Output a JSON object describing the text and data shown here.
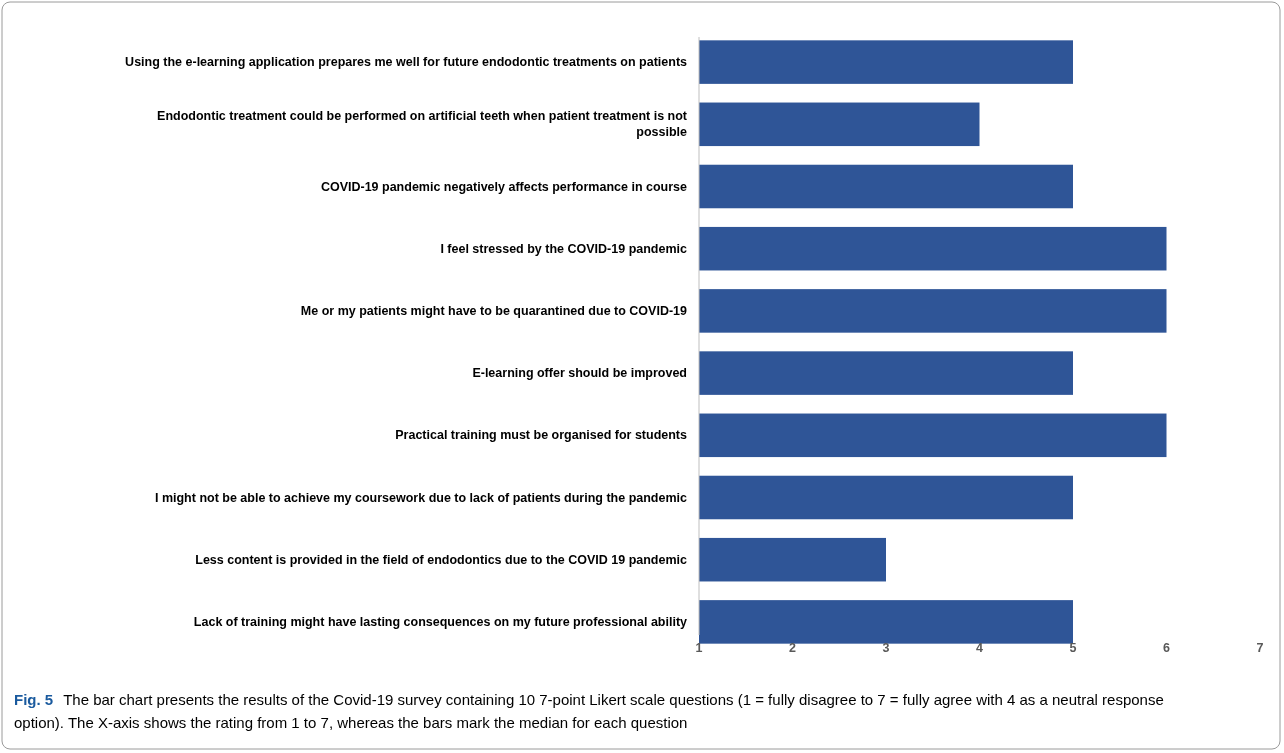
{
  "chart_data": {
    "type": "bar",
    "orientation": "horizontal",
    "categories": [
      "Using the e-learning application prepares me well for future endodontic treatments on patients",
      "Endodontic treatment could be performed on artificial teeth when patient treatment is not possible",
      "COVID-19 pandemic negatively affects performance in course",
      "I feel stressed by the COVID-19 pandemic",
      "Me or my patients might have to be quarantined due to COVID-19",
      "E-learning offer should be improved",
      "Practical training must be organised for students",
      "I might not be able to achieve my coursework due to lack of patients during the pandemic",
      "Less content is provided in the field of endodontics due to the COVID 19 pandemic",
      "Lack of training might have lasting consequences on my future professional ability"
    ],
    "values": [
      5,
      4,
      5,
      6,
      6,
      5,
      6,
      5,
      3,
      5
    ],
    "color": "#2f5597",
    "xlim": [
      1,
      7
    ],
    "xticks": [
      1,
      2,
      3,
      4,
      5,
      6,
      7
    ],
    "grid": false,
    "annotations": [
      "Fig. 5",
      "The bar chart presents the results of the Covid-19 survey containing 10 7-point Likert scale questions (1 = fully disagree to 7 = fully agree with 4 as a neutral response option). The X-axis shows the rating from 1 to 7, whereas the bars mark the median for each question"
    ]
  }
}
